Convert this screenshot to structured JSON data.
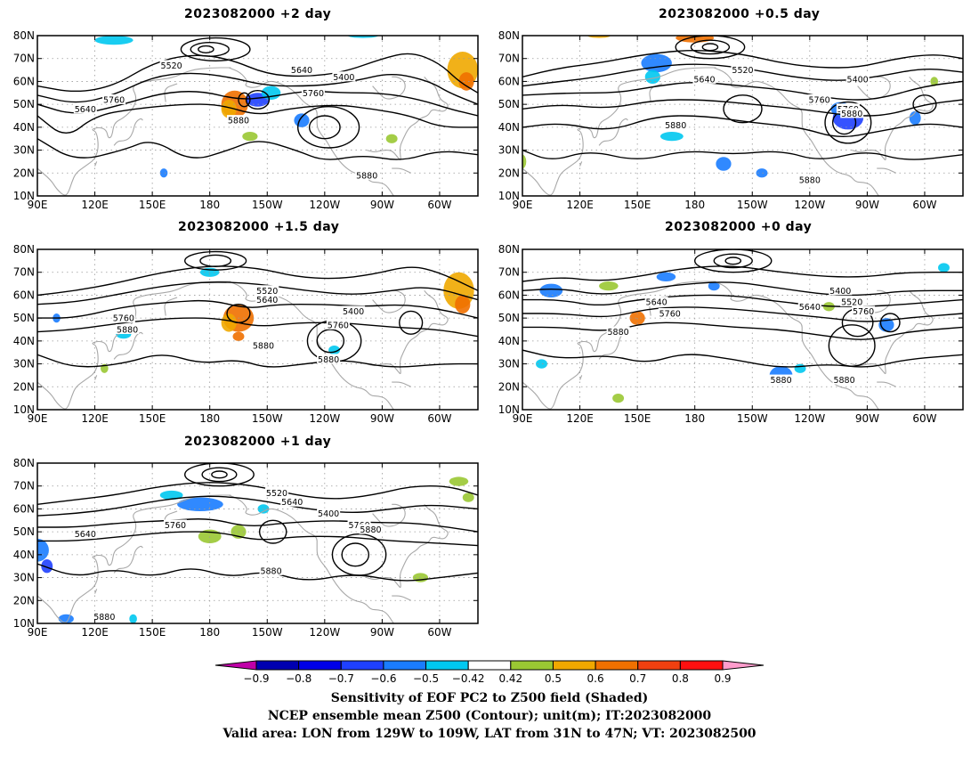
{
  "panels": [
    {
      "title": "2023082000 +2 day",
      "contour_labels": [
        "5520",
        "5640",
        "5400",
        "5760",
        "5640",
        "5760",
        "5880",
        "5880"
      ]
    },
    {
      "title": "2023082000 +0.5 day",
      "contour_labels": [
        "5520",
        "5640",
        "5400",
        "5760",
        "5760",
        "5880",
        "5880",
        "5880"
      ]
    },
    {
      "title": "2023082000 +1.5 day",
      "contour_labels": [
        "5520",
        "5640",
        "5400",
        "5760",
        "5760",
        "5880",
        "5880",
        "5880"
      ]
    },
    {
      "title": "2023082000 +0 day",
      "contour_labels": [
        "5640",
        "5400",
        "5520",
        "5640",
        "5760",
        "5760",
        "5880",
        "5880",
        "5880"
      ]
    },
    {
      "title": "2023082000 +1 day",
      "contour_labels": [
        "5520",
        "5640",
        "5400",
        "5640",
        "5760",
        "5760",
        "5880",
        "5880",
        "5880"
      ]
    }
  ],
  "map": {
    "lat_ticks": [
      "80N",
      "70N",
      "60N",
      "50N",
      "40N",
      "30N",
      "20N",
      "10N"
    ],
    "lon_ticks": [
      "90E",
      "120E",
      "150E",
      "180",
      "150W",
      "120W",
      "90W",
      "60W"
    ],
    "lon_range_deg": [
      90,
      320
    ],
    "lat_range_deg": [
      10,
      80
    ]
  },
  "colorbar": {
    "ticks": [
      "−0.9",
      "−0.8",
      "−0.7",
      "−0.6",
      "−0.5",
      "−0.42",
      "0.42",
      "0.5",
      "0.6",
      "0.7",
      "0.8",
      "0.9"
    ],
    "colors": [
      "#c000a8",
      "#0000b0",
      "#0000e8",
      "#1f40ff",
      "#1a7cff",
      "#00c8f0",
      "#ffffff",
      "#9ac833",
      "#f0a800",
      "#f07000",
      "#f04010",
      "#ff1010",
      "#ff9ccc"
    ]
  },
  "caption": {
    "line1": "Sensitivity of EOF PC2 to Z500 field (Shaded)",
    "line2": "NCEP ensemble mean Z500 (Contour); unit(m); IT:2023082000",
    "line3": "Valid area: LON from 129W to 109W, LAT from 31N to 47N; VT: 2023082500"
  }
}
